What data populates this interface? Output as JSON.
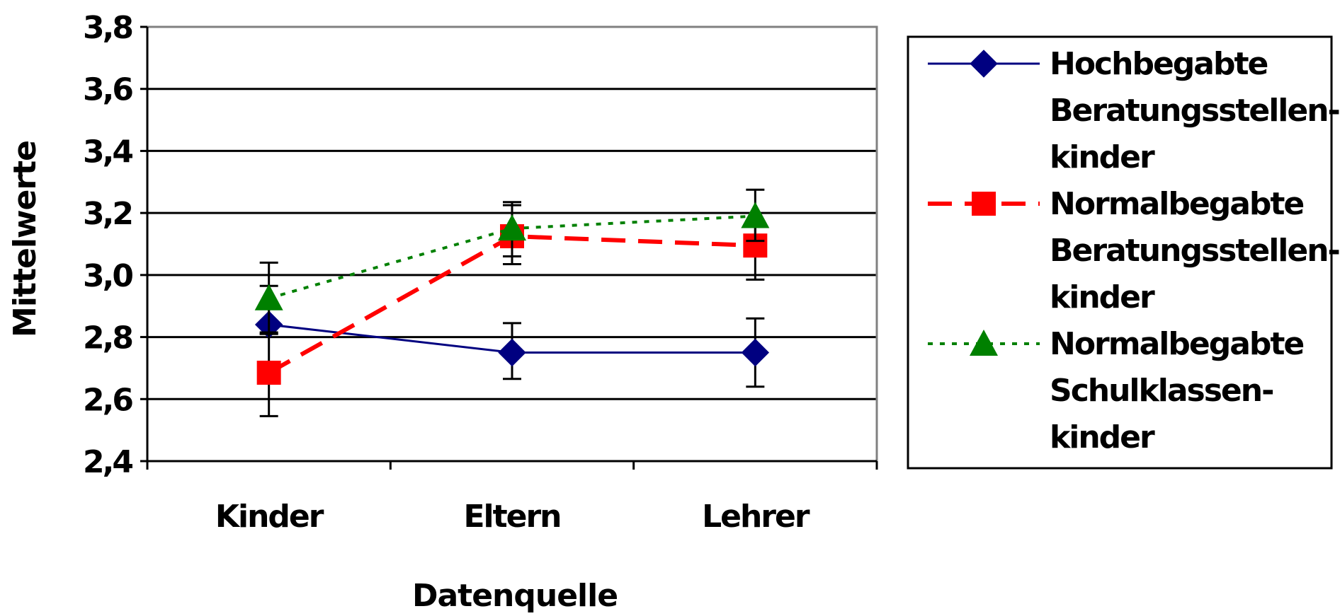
{
  "chart_data": {
    "type": "line",
    "xlabel": "Datenquelle",
    "ylabel": "Mittelwerte",
    "categories": [
      "Kinder",
      "Eltern",
      "Lehrer"
    ],
    "ylim": [
      2.4,
      3.8
    ],
    "yticks": [
      "2,4",
      "2,6",
      "2,8",
      "3,0",
      "3,2",
      "3,4",
      "3,6",
      "3,8"
    ],
    "ytick_values": [
      2.4,
      2.6,
      2.8,
      3.0,
      3.2,
      3.4,
      3.6,
      3.8
    ],
    "grid": true,
    "legend_position": "right",
    "series": [
      {
        "name_lines": [
          "Hochbegabte",
          "Beratungsstellen-",
          "kinder"
        ],
        "values": [
          2.84,
          2.75,
          2.75
        ],
        "error_low": [
          2.81,
          2.665,
          2.64
        ],
        "error_high": [
          2.965,
          2.845,
          2.86
        ],
        "color": "#000080",
        "marker": "diamond",
        "line_style": "solid"
      },
      {
        "name_lines": [
          "Normalbegabte",
          "Beratungsstellen-",
          "kinder"
        ],
        "values": [
          2.685,
          3.125,
          3.095
        ],
        "error_low": [
          2.545,
          3.035,
          2.985
        ],
        "error_high": [
          2.81,
          3.235,
          3.175
        ],
        "color": "#ff0000",
        "marker": "square",
        "line_style": "dashed"
      },
      {
        "name_lines": [
          "Normalbegabte",
          "Schulklassen-",
          "kinder"
        ],
        "values": [
          2.925,
          3.15,
          3.19
        ],
        "error_low": [
          2.815,
          3.06,
          3.11
        ],
        "error_high": [
          3.04,
          3.225,
          3.275
        ],
        "color": "#008000",
        "marker": "triangle",
        "line_style": "dotted"
      }
    ]
  }
}
